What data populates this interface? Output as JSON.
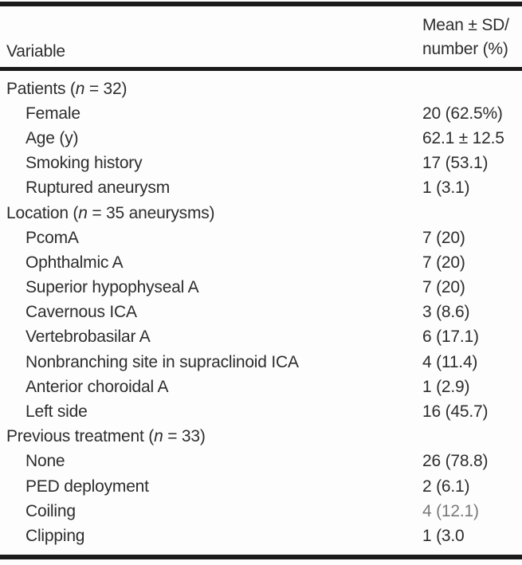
{
  "colors": {
    "text": "#2d2d2d",
    "rule": "#1b1b1b",
    "background": "#fdfdfd",
    "faded_value": "#7a7a7a"
  },
  "table": {
    "header": {
      "variable": "Variable",
      "value_line1": "Mean ± SD/",
      "value_line2": "number (%)"
    },
    "rows": [
      {
        "type": "section",
        "pre": "Patients (",
        "n": "n",
        "post": " = 32)",
        "value": ""
      },
      {
        "type": "item",
        "label": "Female",
        "value": "20 (62.5%)"
      },
      {
        "type": "item",
        "label": "Age (y)",
        "value": "62.1 ± 12.5"
      },
      {
        "type": "item",
        "label": "Smoking history",
        "value": "17 (53.1)"
      },
      {
        "type": "item",
        "label": "Ruptured aneurysm",
        "value": "1 (3.1)"
      },
      {
        "type": "section",
        "pre": "Location (",
        "n": "n",
        "post": " = 35 aneurysms)",
        "value": ""
      },
      {
        "type": "item",
        "label": "PcomA",
        "value": "7 (20)"
      },
      {
        "type": "item",
        "label": "Ophthalmic A",
        "value": "7 (20)"
      },
      {
        "type": "item",
        "label": "Superior hypophyseal A",
        "value": "7 (20)"
      },
      {
        "type": "item",
        "label": "Cavernous ICA",
        "value": "3 (8.6)"
      },
      {
        "type": "item",
        "label": "Vertebrobasilar A",
        "value": "6 (17.1)"
      },
      {
        "type": "item",
        "label": "Nonbranching site in supraclinoid ICA",
        "value": "4 (11.4)"
      },
      {
        "type": "item",
        "label": "Anterior choroidal A",
        "value": "1 (2.9)"
      },
      {
        "type": "item",
        "label": "Left side",
        "value": "16 (45.7)"
      },
      {
        "type": "section",
        "pre": "Previous treatment (",
        "n": "n",
        "post": " = 33)",
        "value": ""
      },
      {
        "type": "item",
        "label": "None",
        "value": "26 (78.8)"
      },
      {
        "type": "item",
        "label": "PED deployment",
        "value": "2 (6.1)"
      },
      {
        "type": "item",
        "label": "Coiling",
        "value": "4 (12.1)"
      },
      {
        "type": "item",
        "label": "Clipping",
        "value": "1 (3.0"
      }
    ]
  },
  "chart_data": {
    "type": "table",
    "title": "",
    "columns": [
      "Variable",
      "Mean ± SD/number (%)"
    ],
    "rows": [
      [
        "Patients (n = 32)",
        ""
      ],
      [
        "Female",
        "20 (62.5%)"
      ],
      [
        "Age (y)",
        "62.1 ± 12.5"
      ],
      [
        "Smoking history",
        "17 (53.1)"
      ],
      [
        "Ruptured aneurysm",
        "1 (3.1)"
      ],
      [
        "Location (n = 35 aneurysms)",
        ""
      ],
      [
        "PcomA",
        "7 (20)"
      ],
      [
        "Ophthalmic A",
        "7 (20)"
      ],
      [
        "Superior hypophyseal A",
        "7 (20)"
      ],
      [
        "Cavernous ICA",
        "3 (8.6)"
      ],
      [
        "Vertebrobasilar A",
        "6 (17.1)"
      ],
      [
        "Nonbranching site in supraclinoid ICA",
        "4 (11.4)"
      ],
      [
        "Anterior choroidal A",
        "1 (2.9)"
      ],
      [
        "Left side",
        "16 (45.7)"
      ],
      [
        "Previous treatment (n = 33)",
        ""
      ],
      [
        "None",
        "26 (78.8)"
      ],
      [
        "PED deployment",
        "2 (6.1)"
      ],
      [
        "Coiling",
        "4 (12.1)"
      ],
      [
        "Clipping",
        "1 (3.0"
      ]
    ]
  }
}
